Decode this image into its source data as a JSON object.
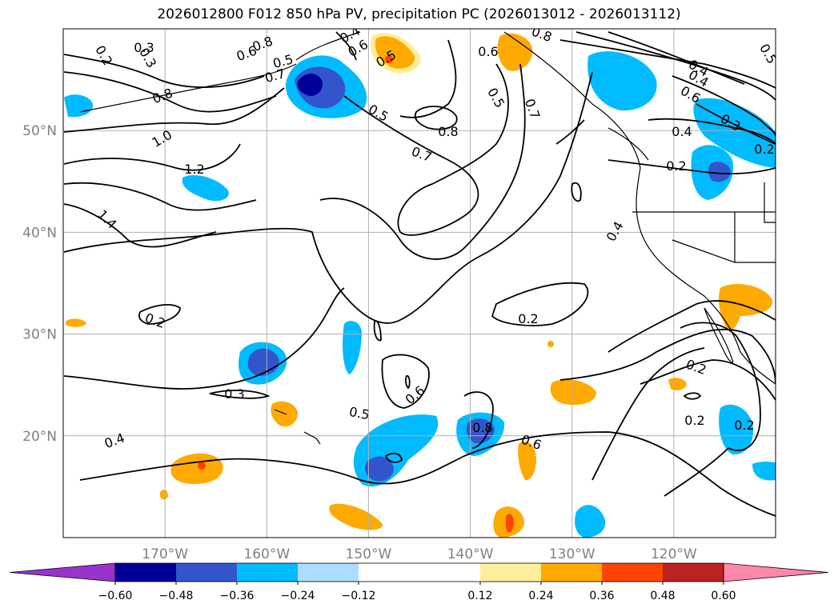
{
  "chart_data": {
    "type": "map-contour",
    "title": "2026012800 F012 850 hPa PV, precipitation PC (2026013012 - 2026013112)",
    "lon_ticks": [
      "170°W",
      "160°W",
      "150°W",
      "140°W",
      "130°W",
      "120°W"
    ],
    "lat_ticks": [
      "50°N",
      "40°N",
      "30°N",
      "20°N"
    ],
    "lon_values": [
      -170,
      -160,
      -150,
      -140,
      -130,
      -120
    ],
    "lat_values": [
      50,
      40,
      30,
      20
    ],
    "extent": {
      "lon": [
        -180,
        -110
      ],
      "lat": [
        10,
        60
      ]
    },
    "colorbar": {
      "ticks": [
        "−0.60",
        "−0.48",
        "−0.36",
        "−0.24",
        "−0.12",
        "0.12",
        "0.24",
        "0.36",
        "0.48",
        "0.60"
      ],
      "tick_values": [
        -0.6,
        -0.48,
        -0.36,
        -0.24,
        -0.12,
        0.12,
        0.24,
        0.36,
        0.48,
        0.6
      ],
      "colors": [
        "#9933cc",
        "#000099",
        "#3355cc",
        "#00bbff",
        "#aaddff",
        "#ffffff",
        "#ffee99",
        "#ffaa00",
        "#ff4400",
        "#bb2222",
        "#ff88aa"
      ]
    },
    "contour_labels": [
      "0.2",
      "0.3",
      "0.4",
      "0.5",
      "0.6",
      "0.7",
      "0.8",
      "1.0",
      "1.2",
      "1.4",
      "0.2",
      "0.3",
      "0.4",
      "0.5",
      "0.6",
      "0.8",
      "0.6",
      "0.2",
      "0.2",
      "0.2",
      "0.2",
      "0.2",
      "0.4",
      "0.3",
      "0.2",
      "0.4",
      "0.5",
      "0.4",
      "0.6",
      "0.4",
      "0.5",
      "0.8",
      "0.7",
      "0.5",
      "0.7",
      "0.8",
      "0.6",
      "0.8",
      "0.6",
      "0.5",
      "0.3"
    ]
  }
}
